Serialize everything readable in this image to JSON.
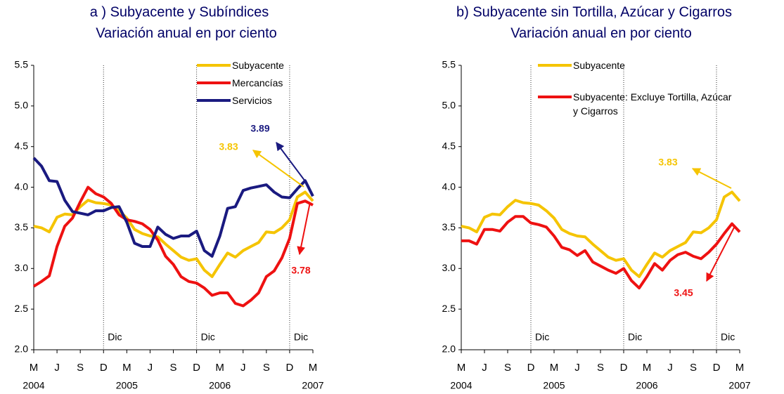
{
  "chart_data": [
    {
      "type": "line",
      "title": "a ) Subyacente y Subíndices",
      "subtitle": "Variación anual en por ciento",
      "categories": [
        "M",
        null,
        null,
        "J",
        null,
        null,
        "S",
        null,
        null,
        "D",
        null,
        null,
        "M",
        null,
        null,
        "J",
        null,
        null,
        "S",
        null,
        null,
        "D",
        null,
        null,
        "M",
        null,
        null,
        "J",
        null,
        null,
        "S",
        null,
        null,
        "D",
        null,
        null,
        "M"
      ],
      "year_categories": [
        "2004",
        null,
        null,
        null,
        null,
        null,
        null,
        null,
        null,
        null,
        null,
        null,
        "2005",
        null,
        null,
        null,
        null,
        null,
        null,
        null,
        null,
        null,
        null,
        null,
        "2006",
        null,
        null,
        null,
        null,
        null,
        null,
        null,
        null,
        null,
        null,
        null,
        "2007"
      ],
      "ylim": [
        2.0,
        5.5
      ],
      "yticks": [
        {
          "value": 2,
          "label": "2.0"
        },
        2.5,
        {
          "value": 3,
          "label": "3.0"
        },
        3.5,
        {
          "value": 4,
          "label": "4.0"
        },
        4.5,
        {
          "value": 5,
          "label": "5.0"
        },
        5.5
      ],
      "legend": "upper right",
      "vlines": [
        {
          "at": 9,
          "label": "Dic"
        },
        {
          "at": 21,
          "label": "Dic"
        },
        {
          "at": 33,
          "label": "Dic"
        }
      ],
      "series": [
        {
          "name": "Subyacente",
          "color": "#f5c400",
          "values": [
            3.52,
            3.5,
            3.45,
            3.63,
            3.67,
            3.66,
            3.76,
            3.84,
            3.81,
            3.8,
            3.78,
            3.71,
            3.62,
            3.48,
            3.43,
            3.4,
            3.39,
            3.3,
            3.22,
            3.14,
            3.1,
            3.12,
            2.98,
            2.9,
            3.05,
            3.19,
            3.14,
            3.22,
            3.27,
            3.32,
            3.45,
            3.44,
            3.5,
            3.6,
            3.88,
            3.94,
            3.83
          ]
        },
        {
          "name": "Mercancías",
          "color": "#ee1111",
          "values": [
            2.78,
            2.84,
            2.91,
            3.27,
            3.52,
            3.62,
            3.82,
            4.0,
            3.92,
            3.88,
            3.8,
            3.66,
            3.6,
            3.58,
            3.55,
            3.48,
            3.35,
            3.15,
            3.05,
            2.9,
            2.84,
            2.82,
            2.76,
            2.67,
            2.7,
            2.7,
            2.57,
            2.54,
            2.61,
            2.7,
            2.9,
            2.97,
            3.13,
            3.37,
            3.8,
            3.83,
            3.78
          ]
        },
        {
          "name": "Servicios",
          "color": "#1a1a80",
          "values": [
            4.36,
            4.26,
            4.08,
            4.07,
            3.84,
            3.7,
            3.68,
            3.66,
            3.71,
            3.71,
            3.75,
            3.76,
            3.57,
            3.31,
            3.27,
            3.27,
            3.51,
            3.42,
            3.37,
            3.4,
            3.4,
            3.46,
            3.22,
            3.15,
            3.4,
            3.74,
            3.76,
            3.96,
            3.99,
            4.01,
            4.03,
            3.94,
            3.88,
            3.87,
            3.98,
            4.08,
            3.89
          ]
        }
      ],
      "annotations": [
        {
          "series": 0,
          "value": 3.83
        },
        {
          "series": 2,
          "value": 3.89
        },
        {
          "series": 1,
          "value": 3.78
        }
      ]
    },
    {
      "type": "line",
      "title": "b) Subyacente sin Tortilla, Azúcar y Cigarros",
      "subtitle": "Variación anual en por ciento",
      "categories": [
        "M",
        null,
        null,
        "J",
        null,
        null,
        "S",
        null,
        null,
        "D",
        null,
        null,
        "M",
        null,
        null,
        "J",
        null,
        null,
        "S",
        null,
        null,
        "D",
        null,
        null,
        "M",
        null,
        null,
        "J",
        null,
        null,
        "S",
        null,
        null,
        "D",
        null,
        null,
        "M"
      ],
      "year_categories": [
        "2004",
        null,
        null,
        null,
        null,
        null,
        null,
        null,
        null,
        null,
        null,
        null,
        "2005",
        null,
        null,
        null,
        null,
        null,
        null,
        null,
        null,
        null,
        null,
        null,
        "2006",
        null,
        null,
        null,
        null,
        null,
        null,
        null,
        null,
        null,
        null,
        null,
        "2007"
      ],
      "ylim": [
        2.0,
        5.5
      ],
      "yticks": [
        {
          "value": 2,
          "label": "2.0"
        },
        2.5,
        {
          "value": 3,
          "label": "3.0"
        },
        3.5,
        {
          "value": 4,
          "label": "4.0"
        },
        4.5,
        {
          "value": 5,
          "label": "5.0"
        },
        5.5
      ],
      "legend": "upper left",
      "vlines": [
        {
          "at": 9,
          "label": "Dic"
        },
        {
          "at": 21,
          "label": "Dic"
        },
        {
          "at": 33,
          "label": "Dic"
        }
      ],
      "series": [
        {
          "name": "Subyacente",
          "color": "#f5c400",
          "values": [
            3.52,
            3.5,
            3.45,
            3.63,
            3.67,
            3.66,
            3.76,
            3.84,
            3.81,
            3.8,
            3.78,
            3.71,
            3.62,
            3.48,
            3.43,
            3.4,
            3.39,
            3.3,
            3.22,
            3.14,
            3.1,
            3.12,
            2.98,
            2.9,
            3.05,
            3.19,
            3.14,
            3.22,
            3.27,
            3.32,
            3.45,
            3.44,
            3.5,
            3.6,
            3.88,
            3.94,
            3.83
          ]
        },
        {
          "name": "Subyacente: Excluye Tortilla, Azúcar y Cigarros",
          "color": "#ee1111",
          "values": [
            3.34,
            3.34,
            3.3,
            3.48,
            3.48,
            3.46,
            3.57,
            3.64,
            3.64,
            3.56,
            3.54,
            3.51,
            3.4,
            3.26,
            3.23,
            3.16,
            3.22,
            3.08,
            3.03,
            2.98,
            2.94,
            3.0,
            2.85,
            2.76,
            2.9,
            3.06,
            2.98,
            3.1,
            3.17,
            3.2,
            3.15,
            3.12,
            3.2,
            3.3,
            3.43,
            3.55,
            3.45
          ]
        }
      ],
      "annotations": [
        {
          "series": 0,
          "value": 3.83
        },
        {
          "series": 1,
          "value": 3.45
        }
      ]
    }
  ]
}
